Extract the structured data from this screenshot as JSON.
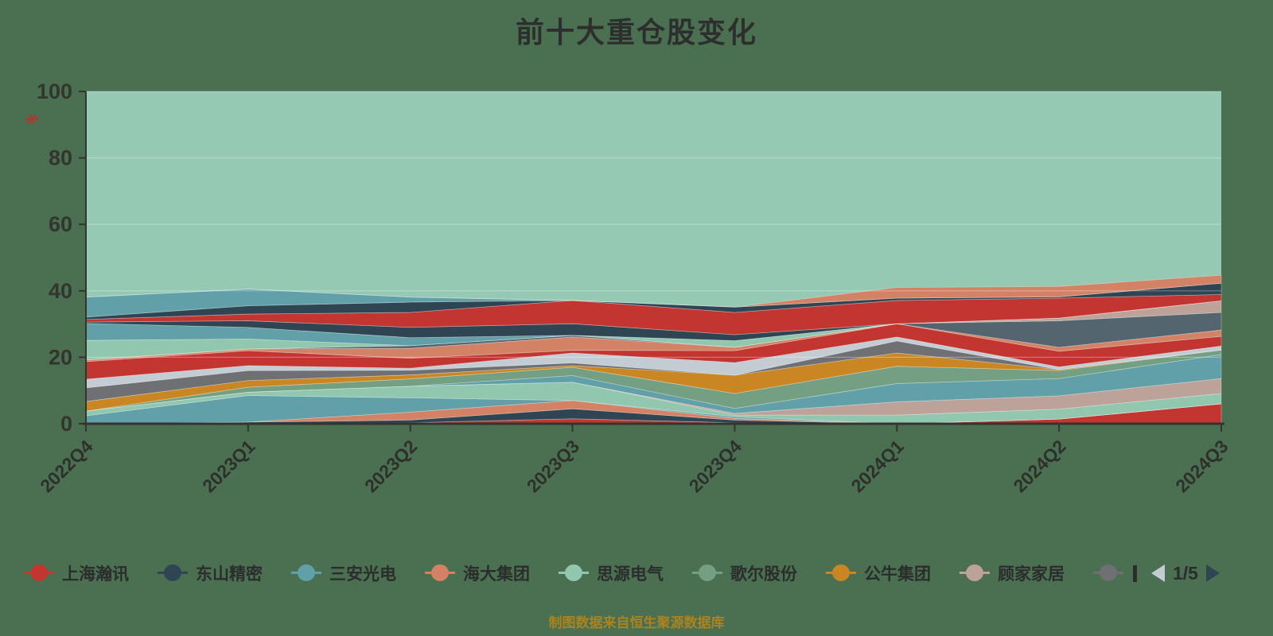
{
  "title": "前十大重仓股变化",
  "footer": "制图数据来自恒生聚源数据库",
  "y_axis": {
    "unit": "%"
  },
  "legend": {
    "items": [
      {
        "label": "上海瀚讯",
        "color": "#c23531",
        "partial": false
      },
      {
        "label": "东山精密",
        "color": "#2f4554",
        "partial": false
      },
      {
        "label": "三安光电",
        "color": "#61a0a8",
        "partial": false
      },
      {
        "label": "海大集团",
        "color": "#d48265",
        "partial": false
      },
      {
        "label": "思源电气",
        "color": "#91c7ae",
        "partial": false
      },
      {
        "label": "歌尔股份",
        "color": "#749f83",
        "partial": false
      },
      {
        "label": "公牛集团",
        "color": "#ca8622",
        "partial": false
      },
      {
        "label": "顾家家居",
        "color": "#bda29a",
        "partial": false
      },
      {
        "label": "",
        "color": "#6e7074",
        "partial": true
      }
    ],
    "pagination": {
      "current": 1,
      "total": 5,
      "label": "1/5"
    }
  },
  "chart_data": {
    "type": "area",
    "stacked": true,
    "title": "前十大重仓股变化",
    "ylabel": "%",
    "ylim": [
      0,
      100
    ],
    "y_ticks": [
      0,
      20,
      40,
      60,
      80,
      100
    ],
    "grid": true,
    "legend_position": "bottom",
    "plot_background": "#95c9b4",
    "page_background": "#4a7051",
    "categories": [
      "2022Q4",
      "2023Q1",
      "2023Q2",
      "2023Q3",
      "2023Q4",
      "2024Q1",
      "2024Q2",
      "2024Q3"
    ],
    "series": [
      {
        "name": "",
        "color": "#c23531",
        "values": [
          0,
          0,
          0.3,
          1.5,
          0.3,
          0,
          1.4,
          6.0
        ]
      },
      {
        "name": "",
        "color": "#2f4554",
        "values": [
          0,
          0.5,
          0.8,
          3.0,
          0.8,
          0,
          0,
          0
        ]
      },
      {
        "name": "",
        "color": "#d48265",
        "values": [
          0,
          0,
          2.4,
          2.5,
          0.5,
          0,
          0,
          0
        ]
      },
      {
        "name": "三安光电",
        "color": "#61a0a8",
        "values": [
          2.4,
          8.0,
          4.3,
          0,
          0.5,
          0,
          0,
          0
        ]
      },
      {
        "name": "思源电气",
        "color": "#91c7ae",
        "values": [
          1.4,
          1.0,
          3.5,
          5.5,
          0.5,
          2.6,
          3.0,
          3.1
        ]
      },
      {
        "name": "顾家家居",
        "color": "#bda29a",
        "values": [
          0,
          0,
          0,
          0,
          0.5,
          4.0,
          4.0,
          4.5
        ]
      },
      {
        "name": "",
        "color": "#61a0a8",
        "values": [
          0,
          0,
          0,
          2.0,
          1.5,
          5.5,
          5.2,
          7.2
        ]
      },
      {
        "name": "歌尔股份",
        "color": "#749f83",
        "values": [
          0,
          1.5,
          2.2,
          2.5,
          4.5,
          5.2,
          2.4,
          1.4
        ]
      },
      {
        "name": "公牛集团",
        "color": "#ca8622",
        "values": [
          2.9,
          2.0,
          1.2,
          0.5,
          5.5,
          4.0,
          0.3,
          0
        ]
      },
      {
        "name": "",
        "color": "#6e7074",
        "values": [
          4.1,
          3.0,
          1.4,
          0.8,
          0,
          3.6,
          0,
          0
        ]
      },
      {
        "name": "",
        "color": "#c4ccd3",
        "values": [
          2.6,
          1.5,
          0.6,
          3.0,
          3.8,
          1.2,
          0.8,
          1.2
        ]
      },
      {
        "name": "上海瀚讯",
        "color": "#c23531",
        "values": [
          5.3,
          4.5,
          3.0,
          0.8,
          3.6,
          4.0,
          4.7,
          2.9
        ]
      },
      {
        "name": "海大集团",
        "color": "#d48265",
        "values": [
          0.5,
          0.5,
          3.0,
          4.0,
          1.0,
          0,
          1.2,
          1.9
        ]
      },
      {
        "name": "",
        "color": "#546570",
        "values": [
          0,
          0,
          0.8,
          0.5,
          0,
          0,
          8.0,
          5.3
        ]
      },
      {
        "name": "",
        "color": "#bda29a",
        "values": [
          0,
          0,
          0,
          0,
          0,
          0,
          0.8,
          3.5
        ]
      },
      {
        "name": "",
        "color": "#91c7ae",
        "values": [
          5.9,
          3.0,
          0,
          0,
          2.0,
          0,
          0,
          0
        ]
      },
      {
        "name": "",
        "color": "#61a0a8",
        "values": [
          5.1,
          3.5,
          2.4,
          0,
          0,
          0,
          0,
          0
        ]
      },
      {
        "name": "东山精密",
        "color": "#2f4554",
        "values": [
          0.4,
          2.0,
          3.1,
          3.5,
          1.8,
          0,
          0,
          0
        ]
      },
      {
        "name": "",
        "color": "#c23531",
        "values": [
          0.8,
          2.0,
          4.5,
          7.0,
          6.7,
          7.0,
          6.0,
          1.9
        ]
      },
      {
        "name": "",
        "color": "#2f4554",
        "values": [
          0.7,
          2.5,
          3.1,
          0,
          1.6,
          0.7,
          0.4,
          3.4
        ]
      },
      {
        "name": "",
        "color": "#61a0a8",
        "values": [
          6.0,
          5.0,
          1.5,
          0,
          0,
          0,
          0,
          0
        ]
      },
      {
        "name": "",
        "color": "#d48265",
        "values": [
          0,
          0,
          0,
          0,
          0,
          3.2,
          3.1,
          2.4
        ]
      }
    ]
  }
}
